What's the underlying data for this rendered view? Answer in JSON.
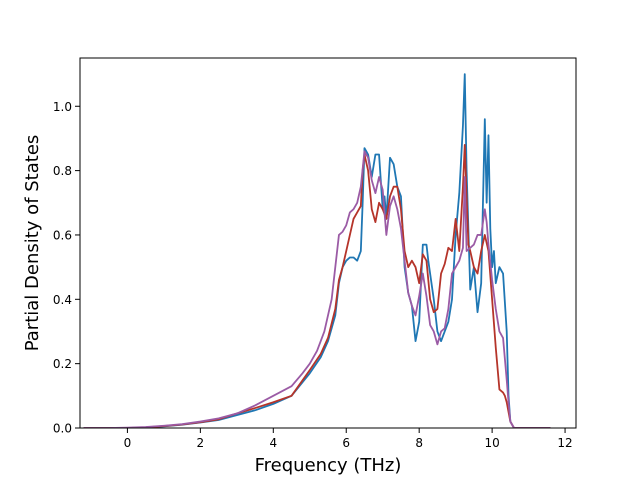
{
  "chart_data": {
    "type": "line",
    "title": "",
    "xlabel": "Frequency (THz)",
    "ylabel": "Partial Density of States",
    "xlim": [
      -1.3,
      12.3
    ],
    "ylim": [
      0,
      1.15
    ],
    "xticks": [
      0,
      2,
      4,
      6,
      8,
      10,
      12
    ],
    "yticks": [
      0.0,
      0.2,
      0.4,
      0.6,
      0.8,
      1.0
    ],
    "xtick_labels": [
      "0",
      "2",
      "4",
      "6",
      "8",
      "10",
      "12"
    ],
    "ytick_labels": [
      "0.0",
      "0.2",
      "0.4",
      "0.6",
      "0.8",
      "1.0"
    ],
    "grid": false,
    "legend": false,
    "series": [
      {
        "color": "#1f77b4",
        "x": [
          -1.2,
          -0.5,
          0.0,
          0.5,
          1.0,
          1.5,
          2.0,
          2.5,
          3.0,
          3.5,
          4.0,
          4.5,
          5.0,
          5.3,
          5.5,
          5.7,
          5.8,
          5.9,
          6.0,
          6.1,
          6.2,
          6.3,
          6.4,
          6.45,
          6.5,
          6.6,
          6.7,
          6.8,
          6.9,
          7.0,
          7.05,
          7.1,
          7.2,
          7.3,
          7.4,
          7.5,
          7.6,
          7.7,
          7.8,
          7.9,
          8.0,
          8.1,
          8.2,
          8.25,
          8.3,
          8.4,
          8.5,
          8.6,
          8.7,
          8.8,
          8.9,
          9.0,
          9.1,
          9.2,
          9.25,
          9.3,
          9.4,
          9.5,
          9.6,
          9.7,
          9.8,
          9.85,
          9.9,
          9.95,
          10.0,
          10.05,
          10.1,
          10.2,
          10.3,
          10.4,
          10.45,
          10.5,
          10.6,
          10.8,
          11.2,
          11.6
        ],
        "y": [
          0.0,
          0.0,
          0.0,
          0.002,
          0.005,
          0.01,
          0.017,
          0.025,
          0.04,
          0.055,
          0.075,
          0.1,
          0.17,
          0.22,
          0.27,
          0.35,
          0.45,
          0.5,
          0.52,
          0.53,
          0.53,
          0.52,
          0.55,
          0.7,
          0.87,
          0.85,
          0.78,
          0.85,
          0.85,
          0.68,
          0.72,
          0.65,
          0.84,
          0.82,
          0.75,
          0.72,
          0.5,
          0.42,
          0.38,
          0.27,
          0.33,
          0.57,
          0.57,
          0.52,
          0.48,
          0.4,
          0.3,
          0.27,
          0.3,
          0.33,
          0.4,
          0.6,
          0.73,
          0.94,
          1.1,
          0.8,
          0.43,
          0.5,
          0.36,
          0.45,
          0.96,
          0.7,
          0.91,
          0.62,
          0.5,
          0.55,
          0.45,
          0.5,
          0.48,
          0.3,
          0.1,
          0.02,
          0.0,
          0.0,
          0.0,
          0.0
        ]
      },
      {
        "color": "#b5342a",
        "x": [
          -1.2,
          -0.5,
          0.0,
          0.5,
          1.0,
          1.5,
          2.0,
          2.5,
          3.0,
          3.5,
          4.0,
          4.5,
          5.0,
          5.3,
          5.5,
          5.7,
          5.8,
          5.9,
          6.0,
          6.1,
          6.2,
          6.3,
          6.4,
          6.45,
          6.5,
          6.6,
          6.7,
          6.8,
          6.9,
          7.0,
          7.1,
          7.2,
          7.3,
          7.4,
          7.5,
          7.6,
          7.7,
          7.8,
          7.9,
          8.0,
          8.1,
          8.2,
          8.3,
          8.4,
          8.5,
          8.6,
          8.7,
          8.8,
          8.9,
          9.0,
          9.1,
          9.2,
          9.25,
          9.3,
          9.35,
          9.4,
          9.5,
          9.6,
          9.7,
          9.8,
          9.9,
          10.0,
          10.1,
          10.2,
          10.3,
          10.35,
          10.4,
          10.45,
          10.5,
          10.6,
          10.8,
          11.2,
          11.6
        ],
        "y": [
          0.0,
          0.0,
          0.0,
          0.002,
          0.006,
          0.011,
          0.018,
          0.027,
          0.045,
          0.062,
          0.08,
          0.1,
          0.18,
          0.23,
          0.28,
          0.37,
          0.46,
          0.5,
          0.55,
          0.6,
          0.65,
          0.67,
          0.69,
          0.8,
          0.85,
          0.8,
          0.68,
          0.64,
          0.7,
          0.68,
          0.65,
          0.72,
          0.75,
          0.75,
          0.68,
          0.55,
          0.5,
          0.52,
          0.5,
          0.45,
          0.54,
          0.52,
          0.4,
          0.36,
          0.37,
          0.48,
          0.51,
          0.56,
          0.55,
          0.65,
          0.55,
          0.75,
          0.88,
          0.72,
          0.57,
          0.55,
          0.5,
          0.48,
          0.55,
          0.6,
          0.55,
          0.4,
          0.25,
          0.12,
          0.11,
          0.1,
          0.08,
          0.05,
          0.02,
          0.0,
          0.0,
          0.0,
          0.0
        ]
      },
      {
        "color": "#9b5ba5",
        "x": [
          -1.2,
          -0.5,
          0.0,
          0.5,
          1.0,
          1.5,
          2.0,
          2.5,
          3.0,
          3.5,
          4.0,
          4.5,
          4.8,
          5.0,
          5.2,
          5.4,
          5.6,
          5.7,
          5.8,
          5.9,
          6.0,
          6.1,
          6.2,
          6.3,
          6.4,
          6.5,
          6.6,
          6.7,
          6.8,
          6.9,
          7.0,
          7.1,
          7.2,
          7.3,
          7.4,
          7.5,
          7.6,
          7.7,
          7.8,
          7.9,
          8.0,
          8.1,
          8.2,
          8.3,
          8.4,
          8.5,
          8.6,
          8.7,
          8.8,
          8.9,
          9.0,
          9.1,
          9.2,
          9.25,
          9.3,
          9.4,
          9.5,
          9.6,
          9.7,
          9.8,
          9.85,
          9.9,
          10.0,
          10.1,
          10.2,
          10.3,
          10.4,
          10.45,
          10.5,
          10.6,
          10.8,
          11.2,
          11.6
        ],
        "y": [
          0.0,
          0.0,
          0.001,
          0.003,
          0.007,
          0.012,
          0.02,
          0.03,
          0.045,
          0.07,
          0.1,
          0.13,
          0.17,
          0.2,
          0.24,
          0.3,
          0.4,
          0.5,
          0.6,
          0.61,
          0.63,
          0.67,
          0.68,
          0.7,
          0.75,
          0.86,
          0.84,
          0.77,
          0.73,
          0.78,
          0.74,
          0.6,
          0.69,
          0.72,
          0.68,
          0.62,
          0.52,
          0.42,
          0.38,
          0.35,
          0.41,
          0.48,
          0.41,
          0.32,
          0.3,
          0.26,
          0.3,
          0.31,
          0.37,
          0.48,
          0.5,
          0.52,
          0.56,
          0.78,
          0.55,
          0.56,
          0.57,
          0.6,
          0.6,
          0.68,
          0.64,
          0.57,
          0.46,
          0.37,
          0.3,
          0.28,
          0.15,
          0.08,
          0.02,
          0.0,
          0.0,
          0.0,
          0.0
        ]
      }
    ]
  }
}
